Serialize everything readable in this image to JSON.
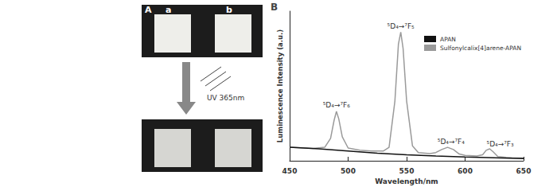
{
  "figure": {
    "panel_a": {
      "label": "A",
      "samples": [
        "a",
        "b"
      ],
      "arrow_label": "UV 365nm"
    },
    "panel_b_label": "B"
  },
  "chart_data": {
    "type": "line",
    "x_label": "Wavelength/nm",
    "y_label": "Luminescence Intensity (a.u.)",
    "xlim": [
      450,
      650
    ],
    "xticks": [
      450,
      500,
      550,
      600,
      650
    ],
    "ylim": [
      0,
      100
    ],
    "tick_labels": "x",
    "grid": false,
    "legend": "upper right",
    "series": [
      {
        "name": "APAN",
        "color": "#111111",
        "x": [
          450,
          475,
          500,
          525,
          550,
          575,
          600,
          625,
          650
        ],
        "values": [
          9,
          8,
          6.5,
          5,
          4,
          3.2,
          2.5,
          2,
          1.5
        ]
      },
      {
        "name": "Sulfonylcalix[4]arene-APAN",
        "color": "#9a9a9a",
        "x": [
          450,
          460,
          470,
          480,
          485,
          488,
          490,
          492,
          495,
          500,
          510,
          520,
          530,
          535,
          540,
          543,
          545,
          547,
          550,
          555,
          560,
          570,
          575,
          580,
          585,
          590,
          595,
          600,
          610,
          615,
          618,
          621,
          624,
          628,
          635,
          640,
          650
        ],
        "values": [
          9,
          8.6,
          8.3,
          9,
          15,
          27,
          33,
          28,
          16,
          8.5,
          7,
          6.5,
          6.5,
          9,
          40,
          78,
          86,
          75,
          40,
          10,
          5.5,
          4.8,
          5.5,
          7.5,
          9,
          7.5,
          4.5,
          3.6,
          3.2,
          4,
          7,
          8,
          6,
          2.8,
          2.3,
          2,
          1.8
        ]
      }
    ],
    "annotations": [
      {
        "text": "⁵D₄→⁷F₆",
        "x": 490,
        "y": 37
      },
      {
        "text": "⁵D₄→⁷F₅",
        "x": 545,
        "y": 90
      },
      {
        "text": "⁵D₄→⁷F₄",
        "x": 588,
        "y": 13
      },
      {
        "text": "⁵D₄→⁷F₃",
        "x": 630,
        "y": 11
      }
    ]
  }
}
